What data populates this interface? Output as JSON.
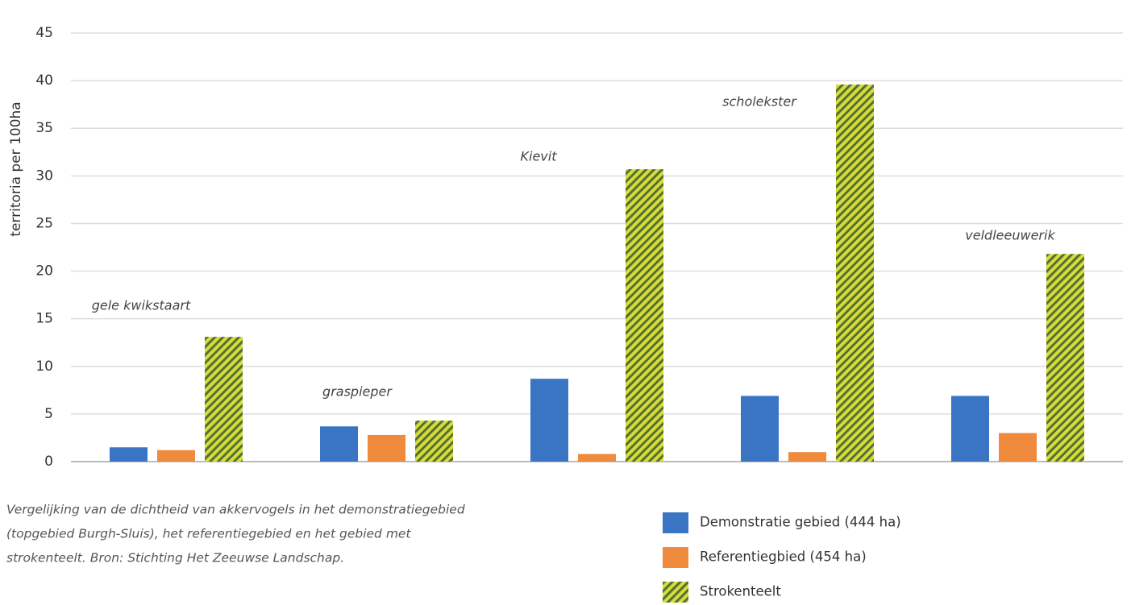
{
  "chart_data": {
    "type": "bar",
    "y_label": "territoria per 100ha",
    "categories": [
      "gele kwikstaart",
      "graspieper",
      "Kievit",
      "scholekster",
      "veldleeuwerik"
    ],
    "series": [
      {
        "name": "Demonstratie gebied (444 ha)",
        "color": "#3a75c4",
        "values": [
          1.5,
          3.7,
          8.7,
          6.9,
          6.9
        ]
      },
      {
        "name": "Referentiegbied (454 ha)",
        "color": "#f08a3c",
        "values": [
          1.2,
          2.8,
          0.8,
          1.0,
          3.0
        ]
      },
      {
        "name": "Strokenteelt",
        "color": "#d6dc3c",
        "hatch": "#55702f",
        "values": [
          13.1,
          4.3,
          30.7,
          39.6,
          21.8
        ]
      }
    ],
    "ylim": [
      0,
      45
    ],
    "yticks": [
      0,
      5,
      10,
      15,
      20,
      25,
      30,
      35,
      40,
      45
    ],
    "grid": true,
    "caption": [
      "Vergelijking van de dichtheid van akkervogels in het demonstratiegebied",
      "(topgebied Burgh-Sluis), het referentiegebied en het gebied met",
      "strokenteelt. Bron: Stichting Het Zeeuwse Landschap."
    ],
    "legend": "bottom-right"
  }
}
